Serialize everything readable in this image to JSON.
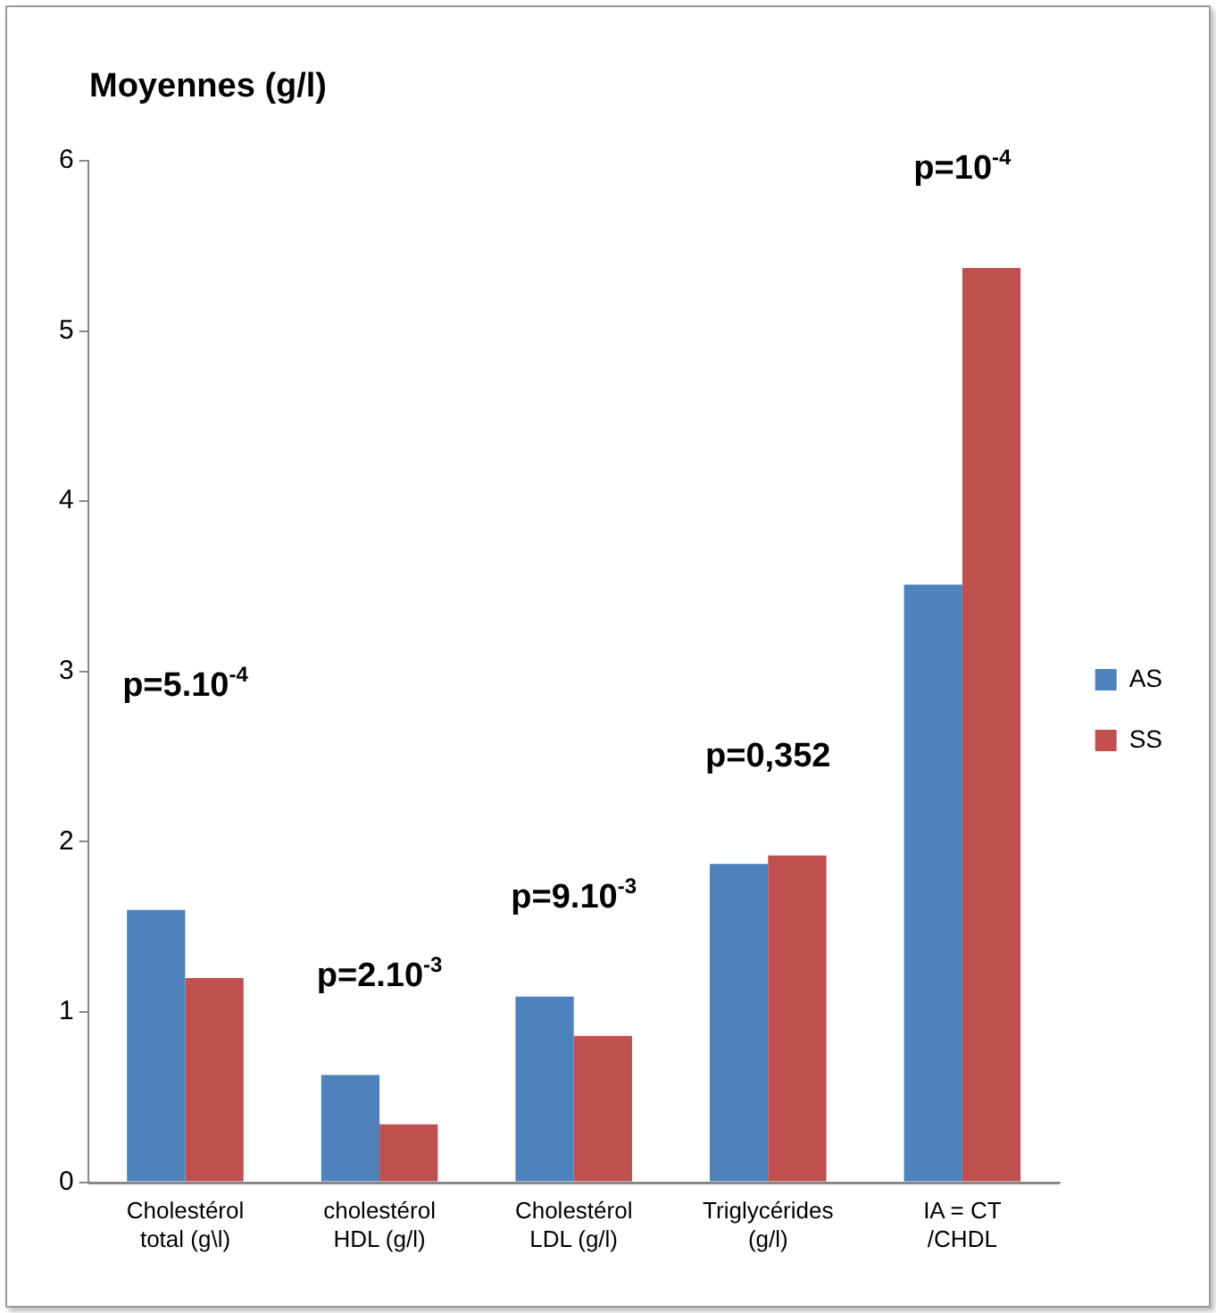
{
  "chart_data": {
    "type": "bar",
    "ylabel": "Moyennes (g/l)",
    "categories": [
      "Cholestérol total (g\\l)",
      "cholestérol HDL (g/l)",
      "Cholestérol LDL (g/l)",
      "Triglycérides (g/l)",
      "IA = CT /CHDL"
    ],
    "series": [
      {
        "name": "AS",
        "color": "#4f81bd",
        "values": [
          1.6,
          0.63,
          1.09,
          1.87,
          3.51
        ]
      },
      {
        "name": "SS",
        "color": "#c0504d",
        "values": [
          1.2,
          0.34,
          0.86,
          1.92,
          5.37
        ]
      }
    ],
    "ylim": [
      0,
      6
    ],
    "yticks": [
      0,
      1,
      2,
      3,
      4,
      5,
      6
    ],
    "grid": false,
    "legend": "right",
    "annotations": [
      "p=5.10$^{-4}$",
      "p=2.10$^{-3}$",
      "p=9.10$^{-3}$",
      "p=0,352",
      "p=10$^{-4}$"
    ]
  }
}
